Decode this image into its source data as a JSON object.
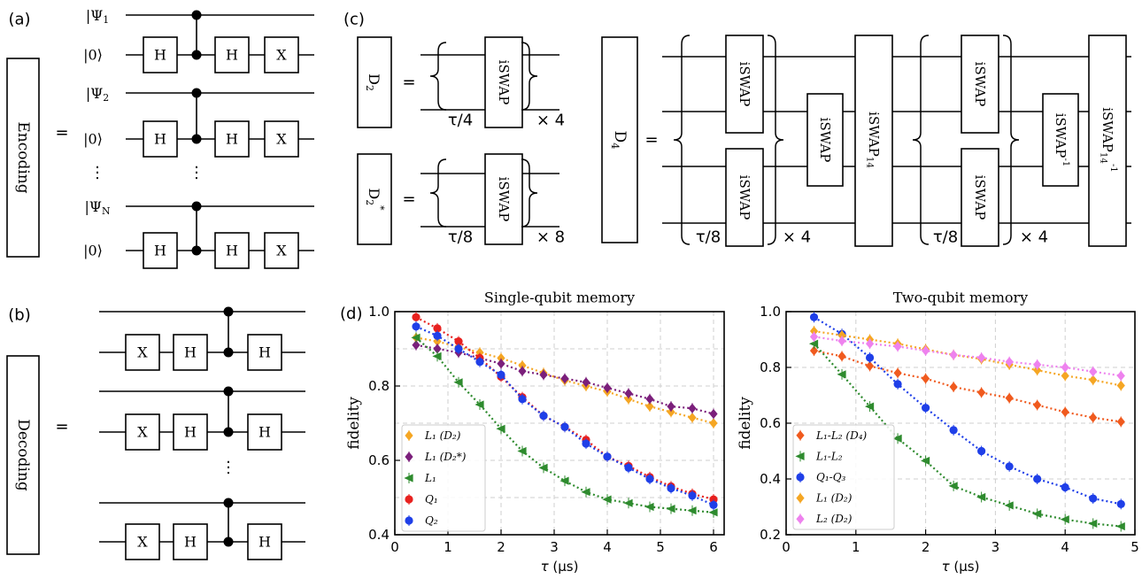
{
  "panels": {
    "a": {
      "label": "(a)",
      "box": "Encoding",
      "eq": "=",
      "qubits": [
        {
          "input_main": "|Ψ",
          "input_sub": "1",
          "input_close": "⟩",
          "ancilla": "|0⟩"
        },
        {
          "input_main": "|Ψ",
          "input_sub": "2",
          "input_close": "⟩",
          "ancilla": "|0⟩"
        },
        {
          "input_main": "|Ψ",
          "input_sub": "N",
          "input_close": "⟩",
          "ancilla": "|0⟩"
        }
      ],
      "gates": [
        "H",
        "H",
        "X"
      ],
      "dots": "⋮"
    },
    "b": {
      "label": "(b)",
      "box": "Decoding",
      "eq": "=",
      "gates": [
        "X",
        "H",
        "H"
      ],
      "dots": "⋮"
    },
    "c": {
      "label": "(c)",
      "d2": {
        "box_main": "D",
        "box_sub": "2",
        "gate": "iSWAP",
        "tau": "τ/4",
        "times": "× 4"
      },
      "d2s": {
        "box_main": "D",
        "box_sub": "2",
        "box_sup": "*",
        "gate": "iSWAP",
        "tau": "τ/8",
        "times": "× 8"
      },
      "d4": {
        "box_main": "D",
        "box_sub": "4",
        "gate": "iSWAP",
        "gate14_main": "iSWAP",
        "gate14_sub": "14",
        "gate_inv_main": "iSWAP",
        "gate_inv_sup": "-1",
        "gate14inv_main": "iSWAP",
        "gate14inv_sub": "14",
        "gate14inv_sup": "-1",
        "tau": "τ/8",
        "times": "× 4"
      },
      "eq": "="
    },
    "d": {
      "label": "(d)"
    }
  },
  "chart_data": [
    {
      "type": "line",
      "title": "Single-qubit memory",
      "xlabel_main": "τ",
      "xlabel_unit": "(μs)",
      "ylabel": "fidelity",
      "xlim": [
        0,
        6.2
      ],
      "ylim": [
        0.4,
        1.0
      ],
      "xticks": [
        0,
        1,
        2,
        3,
        4,
        5,
        6
      ],
      "yticks": [
        0.4,
        0.6,
        0.8,
        1.0
      ],
      "grid": true,
      "legend_position": "lower-left",
      "x": [
        0.4,
        0.8,
        1.2,
        1.6,
        2.0,
        2.4,
        2.8,
        3.2,
        3.6,
        4.0,
        4.4,
        4.8,
        5.2,
        5.6,
        6.0
      ],
      "series": [
        {
          "name": "L₁ (D₂)",
          "color": "#f5a623",
          "marker": "diamond",
          "values": [
            0.93,
            0.92,
            0.905,
            0.89,
            0.875,
            0.855,
            0.835,
            0.815,
            0.8,
            0.785,
            0.765,
            0.745,
            0.73,
            0.715,
            0.7
          ]
        },
        {
          "name": "L₁ (D₂*)",
          "color": "#7b1f7b",
          "marker": "diamond",
          "values": [
            0.91,
            0.9,
            0.89,
            0.875,
            0.86,
            0.84,
            0.83,
            0.82,
            0.81,
            0.795,
            0.78,
            0.765,
            0.745,
            0.74,
            0.725
          ]
        },
        {
          "name": "L₁",
          "color": "#2e8b2e",
          "marker": "left-triangle",
          "values": [
            0.93,
            0.88,
            0.81,
            0.75,
            0.685,
            0.625,
            0.58,
            0.545,
            0.515,
            0.495,
            0.485,
            0.475,
            0.47,
            0.465,
            0.46
          ]
        },
        {
          "name": "Q₁",
          "color": "#e8211f",
          "marker": "circle",
          "values": [
            0.985,
            0.955,
            0.92,
            0.875,
            0.825,
            0.77,
            0.72,
            0.69,
            0.655,
            0.61,
            0.585,
            0.555,
            0.53,
            0.51,
            0.495
          ]
        },
        {
          "name": "Q₂",
          "color": "#1f3fe8",
          "marker": "circle",
          "values": [
            0.96,
            0.935,
            0.9,
            0.865,
            0.83,
            0.765,
            0.72,
            0.69,
            0.645,
            0.61,
            0.58,
            0.55,
            0.525,
            0.505,
            0.48
          ]
        }
      ]
    },
    {
      "type": "line",
      "title": "Two-qubit memory",
      "xlabel_main": "τ",
      "xlabel_unit": "(μs)",
      "ylabel": "fidelity",
      "xlim": [
        0,
        5.0
      ],
      "ylim": [
        0.2,
        1.0
      ],
      "xticks": [
        0,
        1,
        2,
        3,
        4,
        5
      ],
      "yticks": [
        0.2,
        0.4,
        0.6,
        0.8,
        1.0
      ],
      "grid": true,
      "legend_position": "lower-left",
      "x": [
        0.4,
        0.8,
        1.2,
        1.6,
        2.0,
        2.4,
        2.8,
        3.2,
        3.6,
        4.0,
        4.4,
        4.8
      ],
      "series": [
        {
          "name": "L₁-L₂ (D₄)",
          "color": "#f05a1e",
          "marker": "diamond",
          "values": [
            0.86,
            0.84,
            0.805,
            0.78,
            0.76,
            0.73,
            0.71,
            0.69,
            0.665,
            0.64,
            0.62,
            0.605
          ]
        },
        {
          "name": "L₁-L₂",
          "color": "#2e8b2e",
          "marker": "left-triangle",
          "values": [
            0.885,
            0.775,
            0.66,
            0.545,
            0.465,
            0.375,
            0.335,
            0.305,
            0.275,
            0.255,
            0.24,
            0.23
          ]
        },
        {
          "name": "Q₁-Q₃",
          "color": "#1f3fe8",
          "marker": "circle",
          "values": [
            0.98,
            0.92,
            0.835,
            0.74,
            0.655,
            0.575,
            0.5,
            0.445,
            0.4,
            0.37,
            0.33,
            0.31
          ]
        },
        {
          "name": "L₁ (D₂)",
          "color": "#f5a623",
          "marker": "diamond",
          "values": [
            0.93,
            0.915,
            0.9,
            0.885,
            0.865,
            0.845,
            0.83,
            0.81,
            0.79,
            0.77,
            0.755,
            0.735
          ]
        },
        {
          "name": "L₂ (D₂)",
          "color": "#ee82ee",
          "marker": "diamond",
          "values": [
            0.91,
            0.895,
            0.885,
            0.875,
            0.86,
            0.845,
            0.835,
            0.82,
            0.81,
            0.8,
            0.785,
            0.77
          ]
        }
      ]
    }
  ]
}
